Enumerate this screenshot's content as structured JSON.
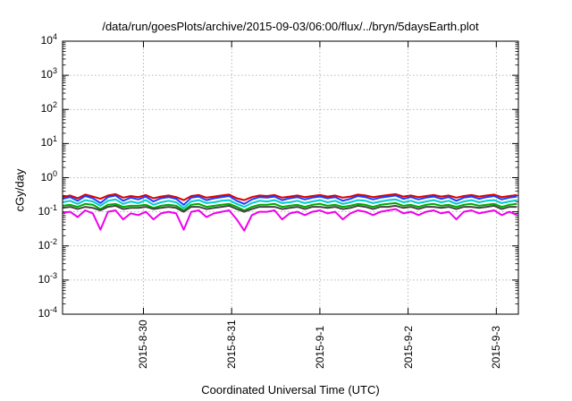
{
  "chart_data": {
    "type": "line",
    "title": "/data/run/goesPlots/archive/2015-09-03/06:00/flux/../bryn/5daysEarth.plot",
    "xlabel": "Coordinated Universal Time (UTC)",
    "ylabel": "cGy/day",
    "yscale": "log",
    "ylim": [
      0.0001,
      10000
    ],
    "xlim": [
      "2015-08-29 02:00",
      "2015-09-03 06:00"
    ],
    "grid": true,
    "legend": "none",
    "y_ticks": [
      {
        "base": "10",
        "exp": "-4",
        "value": 0.0001
      },
      {
        "base": "10",
        "exp": "-3",
        "value": 0.001
      },
      {
        "base": "10",
        "exp": "-2",
        "value": 0.01
      },
      {
        "base": "10",
        "exp": "-1",
        "value": 0.1
      },
      {
        "base": "10",
        "exp": "0",
        "value": 1
      },
      {
        "base": "10",
        "exp": "1",
        "value": 10
      },
      {
        "base": "10",
        "exp": "2",
        "value": 100
      },
      {
        "base": "10",
        "exp": "3",
        "value": 1000
      },
      {
        "base": "10",
        "exp": "4",
        "value": 10000
      }
    ],
    "x_ticks": [
      {
        "label": "2015-8-30",
        "value": "2015-08-30 00:00"
      },
      {
        "label": "2015-8-31",
        "value": "2015-08-31 00:00"
      },
      {
        "label": "2015-9-1",
        "value": "2015-09-01 00:00"
      },
      {
        "label": "2015-9-2",
        "value": "2015-09-02 00:00"
      },
      {
        "label": "2015-9-3",
        "value": "2015-09-03 00:00"
      }
    ],
    "x_start": "2015-08-29 02:00",
    "x_step_hours": 2,
    "series": [
      {
        "color": "#dd0000",
        "values": [
          0.27,
          0.3,
          0.25,
          0.32,
          0.28,
          0.24,
          0.3,
          0.33,
          0.26,
          0.29,
          0.27,
          0.31,
          0.25,
          0.28,
          0.3,
          0.27,
          0.22,
          0.29,
          0.31,
          0.26,
          0.28,
          0.3,
          0.32,
          0.25,
          0.22,
          0.27,
          0.3,
          0.29,
          0.31,
          0.26,
          0.28,
          0.3,
          0.27,
          0.29,
          0.31,
          0.28,
          0.3,
          0.26,
          0.28,
          0.32,
          0.3,
          0.27,
          0.29,
          0.31,
          0.33,
          0.28,
          0.3,
          0.27,
          0.29,
          0.31,
          0.28,
          0.3,
          0.26,
          0.29,
          0.31,
          0.28,
          0.3,
          0.32,
          0.27,
          0.29,
          0.31
        ]
      },
      {
        "color": "#1a40ff",
        "values": [
          0.24,
          0.27,
          0.21,
          0.29,
          0.25,
          0.18,
          0.27,
          0.3,
          0.21,
          0.26,
          0.23,
          0.28,
          0.2,
          0.25,
          0.27,
          0.24,
          0.16,
          0.26,
          0.28,
          0.22,
          0.25,
          0.27,
          0.29,
          0.21,
          0.17,
          0.23,
          0.27,
          0.26,
          0.28,
          0.22,
          0.25,
          0.27,
          0.23,
          0.26,
          0.28,
          0.25,
          0.27,
          0.21,
          0.24,
          0.29,
          0.27,
          0.23,
          0.26,
          0.28,
          0.3,
          0.24,
          0.27,
          0.23,
          0.26,
          0.28,
          0.24,
          0.27,
          0.21,
          0.26,
          0.28,
          0.24,
          0.27,
          0.29,
          0.23,
          0.26,
          0.28
        ]
      },
      {
        "color": "#00cccc",
        "values": [
          0.19,
          0.21,
          0.17,
          0.22,
          0.2,
          0.15,
          0.21,
          0.23,
          0.17,
          0.2,
          0.18,
          0.22,
          0.16,
          0.19,
          0.21,
          0.19,
          0.13,
          0.2,
          0.22,
          0.18,
          0.19,
          0.21,
          0.22,
          0.17,
          0.14,
          0.18,
          0.21,
          0.2,
          0.22,
          0.18,
          0.19,
          0.21,
          0.18,
          0.2,
          0.22,
          0.19,
          0.21,
          0.17,
          0.19,
          0.22,
          0.21,
          0.18,
          0.2,
          0.22,
          0.23,
          0.19,
          0.21,
          0.18,
          0.2,
          0.22,
          0.19,
          0.21,
          0.17,
          0.2,
          0.22,
          0.19,
          0.21,
          0.22,
          0.18,
          0.2,
          0.22
        ]
      },
      {
        "color": "#00aa00",
        "values": [
          0.15,
          0.16,
          0.14,
          0.17,
          0.16,
          0.12,
          0.16,
          0.17,
          0.14,
          0.15,
          0.15,
          0.16,
          0.13,
          0.15,
          0.16,
          0.15,
          0.11,
          0.16,
          0.17,
          0.14,
          0.15,
          0.16,
          0.17,
          0.14,
          0.11,
          0.14,
          0.16,
          0.16,
          0.17,
          0.14,
          0.15,
          0.16,
          0.14,
          0.16,
          0.17,
          0.15,
          0.16,
          0.14,
          0.15,
          0.17,
          0.16,
          0.14,
          0.16,
          0.17,
          0.18,
          0.15,
          0.16,
          0.14,
          0.16,
          0.17,
          0.15,
          0.16,
          0.14,
          0.16,
          0.17,
          0.15,
          0.16,
          0.17,
          0.14,
          0.16,
          0.17
        ]
      },
      {
        "color": "#444444",
        "values": [
          0.13,
          0.14,
          0.12,
          0.14,
          0.13,
          0.11,
          0.14,
          0.15,
          0.12,
          0.13,
          0.13,
          0.14,
          0.12,
          0.13,
          0.14,
          0.13,
          0.1,
          0.14,
          0.14,
          0.12,
          0.13,
          0.14,
          0.15,
          0.12,
          0.1,
          0.12,
          0.14,
          0.14,
          0.14,
          0.12,
          0.13,
          0.14,
          0.12,
          0.14,
          0.14,
          0.13,
          0.14,
          0.12,
          0.13,
          0.15,
          0.14,
          0.12,
          0.14,
          0.14,
          0.15,
          0.13,
          0.14,
          0.12,
          0.14,
          0.14,
          0.13,
          0.14,
          0.12,
          0.14,
          0.14,
          0.13,
          0.14,
          0.15,
          0.12,
          0.14,
          0.14
        ]
      },
      {
        "color": "#ee00ee",
        "values": [
          0.095,
          0.1,
          0.07,
          0.11,
          0.09,
          0.03,
          0.1,
          0.11,
          0.06,
          0.09,
          0.08,
          0.1,
          0.06,
          0.09,
          0.1,
          0.09,
          0.03,
          0.1,
          0.11,
          0.07,
          0.09,
          0.1,
          0.11,
          0.06,
          0.028,
          0.08,
          0.1,
          0.1,
          0.11,
          0.06,
          0.09,
          0.1,
          0.08,
          0.1,
          0.11,
          0.09,
          0.1,
          0.06,
          0.09,
          0.11,
          0.1,
          0.08,
          0.1,
          0.11,
          0.12,
          0.09,
          0.1,
          0.08,
          0.1,
          0.11,
          0.09,
          0.1,
          0.06,
          0.1,
          0.11,
          0.09,
          0.1,
          0.11,
          0.08,
          0.1,
          0.08
        ]
      }
    ]
  }
}
